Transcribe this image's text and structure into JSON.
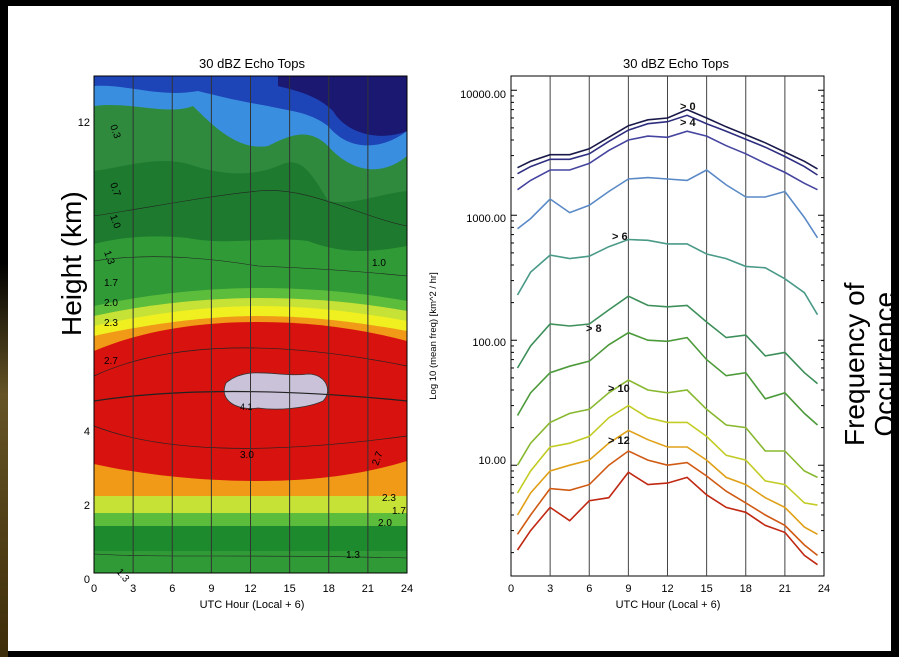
{
  "charts": {
    "left": {
      "title": "30 dBZ Echo Tops",
      "xlabel": "UTC Hour (Local + 6)",
      "ylabel": "Height (km)",
      "xticks": [
        "0",
        "3",
        "6",
        "9",
        "12",
        "15",
        "18",
        "21",
        "24"
      ],
      "yticks": [
        "0",
        "2",
        "4",
        "12"
      ],
      "contour_labels": [
        "0.3",
        "0.7",
        "1.0",
        "1.3",
        "1.7",
        "2.0",
        "2.3",
        "2.7",
        "3.0",
        "1.0",
        "2.7",
        "2.3",
        "2.0",
        "1.7",
        "1.3",
        "1.3",
        "4.1"
      ],
      "colorbar_label": "Log 10 (mean freq) [km^2 / hr]"
    },
    "right": {
      "title": "30 dBZ Echo Tops",
      "xlabel": "UTC Hour (Local + 6)",
      "ylabel": "Frequency of Occurrence",
      "xticks": [
        "0",
        "3",
        "6",
        "9",
        "12",
        "15",
        "18",
        "21",
        "24"
      ],
      "yticks": [
        "10000.00",
        "1000.00",
        "100.00",
        "10.00"
      ],
      "curve_labels": [
        "> 0",
        "> 4",
        "> 6",
        "> 8",
        "> 10",
        "> 12"
      ]
    }
  },
  "chart_data": [
    {
      "type": "heatmap",
      "title": "30 dBZ Echo Tops",
      "xlabel": "UTC Hour (Local + 6)",
      "ylabel": "Height (km)",
      "xlim": [
        0,
        24
      ],
      "ylim": [
        0,
        13.5
      ],
      "colorbar_label": "Log 10 (mean freq) [km^2 / hr]",
      "colors": {
        "dark_navy": "#1a1870",
        "blue": "#1e45b8",
        "light_blue": "#3a8ee0",
        "dark_green": "#1e7a2e",
        "green": "#2f9a36",
        "light_green": "#5cbc3c",
        "yellow_green": "#c6e236",
        "yellow": "#f0f020",
        "orange": "#f09a18",
        "red": "#d8120e",
        "max": "#c9c2d8"
      }
    },
    {
      "type": "line",
      "title": "30 dBZ Echo Tops",
      "xlabel": "UTC Hour (Local + 6)",
      "yscale": "log",
      "xlim": [
        0,
        24
      ],
      "ylim": [
        1.3,
        13000
      ],
      "x": [
        0.5,
        1.5,
        3,
        4.5,
        6,
        7.5,
        9,
        10.5,
        12,
        13.5,
        15,
        16.5,
        18,
        19.5,
        21,
        22.5,
        23.5
      ],
      "series": [
        {
          "name": "> 0",
          "color": "#1a1a4a",
          "values": [
            2400,
            2700,
            3050,
            3050,
            3400,
            4200,
            5200,
            5800,
            6000,
            7000,
            6000,
            5100,
            4400,
            3800,
            3200,
            2700,
            2350
          ]
        },
        {
          "name": "",
          "color": "#2e2e80",
          "values": [
            2150,
            2450,
            2800,
            2800,
            3100,
            3900,
            4800,
            5400,
            5600,
            6300,
            5400,
            4700,
            4050,
            3500,
            2950,
            2450,
            2100
          ]
        },
        {
          "name": "> 4",
          "color": "#4545a0",
          "values": [
            1600,
            1900,
            2300,
            2300,
            2600,
            3300,
            4000,
            4300,
            4200,
            4700,
            4300,
            3600,
            3100,
            2600,
            2200,
            1800,
            1600
          ]
        },
        {
          "name": "",
          "color": "#5a8ac6",
          "values": [
            780,
            940,
            1350,
            1050,
            1200,
            1550,
            1950,
            2000,
            1950,
            1900,
            2300,
            1750,
            1400,
            1400,
            1550,
            960,
            660
          ]
        },
        {
          "name": "> 6",
          "color": "#4a9a88",
          "values": [
            230,
            350,
            480,
            450,
            470,
            560,
            640,
            630,
            590,
            590,
            490,
            450,
            390,
            380,
            310,
            240,
            160
          ]
        },
        {
          "name": "",
          "color": "#3d8f5a",
          "values": [
            60,
            90,
            135,
            130,
            135,
            175,
            225,
            190,
            185,
            190,
            140,
            105,
            110,
            75,
            80,
            55,
            45
          ]
        },
        {
          "name": "> 8",
          "color": "#4c9a3a",
          "values": [
            25,
            38,
            55,
            62,
            68,
            92,
            115,
            100,
            98,
            105,
            70,
            52,
            55,
            34,
            38,
            26,
            21
          ]
        },
        {
          "name": "",
          "color": "#88b830",
          "values": [
            10,
            15,
            22,
            26,
            28,
            38,
            48,
            40,
            38,
            40,
            28,
            21,
            20,
            13,
            13,
            9,
            8
          ]
        },
        {
          "name": "> 10",
          "color": "#c2cc24",
          "values": [
            6,
            9,
            14,
            15,
            17,
            24,
            30,
            24,
            22,
            22,
            17,
            12,
            11,
            7.5,
            7,
            5,
            4.8
          ]
        },
        {
          "name": "",
          "color": "#e0a018",
          "values": [
            4,
            6,
            9,
            10,
            11,
            15,
            19,
            16,
            14,
            14,
            11,
            8,
            7,
            5.5,
            4.6,
            3.2,
            2.8
          ]
        },
        {
          "name": "> 12",
          "color": "#d05a14",
          "values": [
            2.8,
            4,
            6.5,
            6.3,
            7,
            10,
            13,
            11,
            10,
            10.5,
            8.2,
            6.2,
            5,
            4,
            3.3,
            2.3,
            1.9
          ]
        },
        {
          "name": "",
          "color": "#c02812",
          "values": [
            2.1,
            3,
            4.6,
            3.6,
            5.2,
            5.5,
            8.8,
            7,
            7.2,
            8,
            5.8,
            4.6,
            4.2,
            3.3,
            2.9,
            1.9,
            1.6
          ]
        }
      ]
    }
  ]
}
